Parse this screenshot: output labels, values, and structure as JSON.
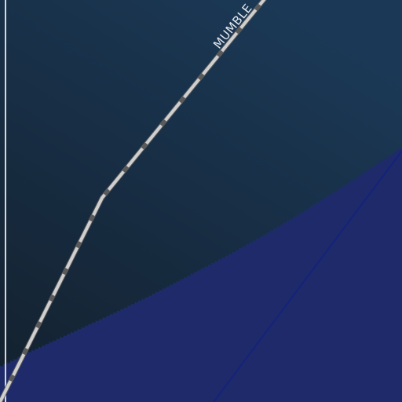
{
  "map": {
    "colors": {
      "land_top": "#1b3957",
      "land_bottom": "#142230",
      "water": "#1f2a6b",
      "water_edge": "#1c2e66",
      "river_line": "#15237a",
      "road_casing": "#5a5a5a",
      "road_fill": "#cfcfcf",
      "boundary_line": "#d8d8d8"
    },
    "road": {
      "label": "MUMBLE",
      "style": "dashed-casing"
    },
    "features": [
      "land",
      "water-body",
      "river",
      "road",
      "boundary-line"
    ]
  }
}
